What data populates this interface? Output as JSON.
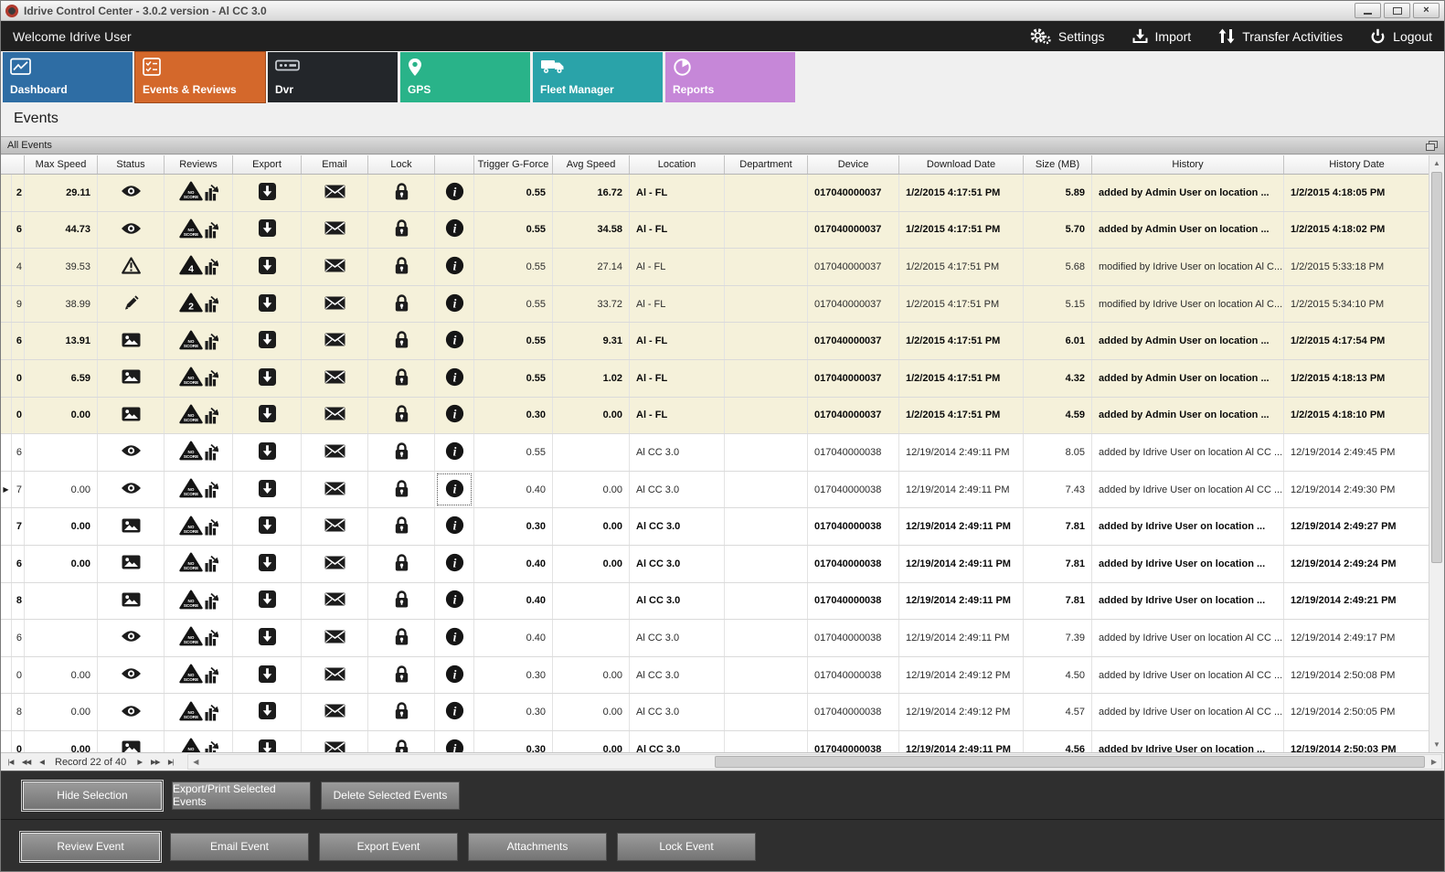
{
  "window": {
    "title": "Idrive Control Center - 3.0.2 version - Al CC 3.0"
  },
  "topbar": {
    "welcome": "Welcome Idrive User",
    "actions": [
      {
        "label": "Settings",
        "icon": "gear-icon"
      },
      {
        "label": "Import",
        "icon": "import-icon"
      },
      {
        "label": "Transfer Activities",
        "icon": "transfer-icon"
      },
      {
        "label": "Logout",
        "icon": "power-icon"
      }
    ]
  },
  "tabs": [
    {
      "label": "Dashboard",
      "color": "#2e6da4",
      "icon": "dashboard-icon",
      "active": false
    },
    {
      "label": "Events & Reviews",
      "color": "#d4682b",
      "icon": "events-icon",
      "active": true
    },
    {
      "label": "Dvr",
      "color": "#23262a",
      "icon": "dvr-icon",
      "active": false
    },
    {
      "label": "GPS",
      "color": "#29b389",
      "icon": "gps-icon",
      "active": false
    },
    {
      "label": "Fleet Manager",
      "color": "#2aa3a9",
      "icon": "fleet-icon",
      "active": false
    },
    {
      "label": "Reports",
      "color": "#c687d8",
      "icon": "reports-icon",
      "active": false
    }
  ],
  "page_title": "Events",
  "panel_title": "All Events",
  "grid": {
    "columns": [
      "Max Speed",
      "Status",
      "Reviews",
      "Export",
      "Email",
      "Lock",
      "",
      "Trigger G-Force",
      "Avg Speed",
      "Location",
      "Department",
      "Device",
      "Download Date",
      "Size (MB)",
      "History",
      "History Date"
    ],
    "rows": [
      {
        "edge": "2",
        "max_speed": "29.11",
        "status_icon": "eye",
        "review_badge": "NO SCORE",
        "trigger_g_force": "0.55",
        "avg_speed": "16.72",
        "location": "Al - FL",
        "department": "",
        "device": "017040000037",
        "download_date": "1/2/2015 4:17:51 PM",
        "size_mb": "5.89",
        "history": "added by Admin User on location ...",
        "history_date": "1/2/2015 4:18:05 PM",
        "bold": true,
        "shaded": true,
        "current": false,
        "focused": false
      },
      {
        "edge": "6",
        "max_speed": "44.73",
        "status_icon": "eye",
        "review_badge": "NO SCORE",
        "trigger_g_force": "0.55",
        "avg_speed": "34.58",
        "location": "Al - FL",
        "department": "",
        "device": "017040000037",
        "download_date": "1/2/2015 4:17:51 PM",
        "size_mb": "5.70",
        "history": "added by Admin User on location ...",
        "history_date": "1/2/2015 4:18:02 PM",
        "bold": true,
        "shaded": true,
        "current": false,
        "focused": false
      },
      {
        "edge": "4",
        "max_speed": "39.53",
        "status_icon": "warning",
        "review_badge": "4",
        "trigger_g_force": "0.55",
        "avg_speed": "27.14",
        "location": "Al - FL",
        "department": "",
        "device": "017040000037",
        "download_date": "1/2/2015 4:17:51 PM",
        "size_mb": "5.68",
        "history": "modified by Idrive User on location Al C...",
        "history_date": "1/2/2015 5:33:18 PM",
        "bold": false,
        "shaded": true,
        "current": false,
        "focused": false
      },
      {
        "edge": "9",
        "max_speed": "38.99",
        "status_icon": "pencil",
        "review_badge": "2",
        "trigger_g_force": "0.55",
        "avg_speed": "33.72",
        "location": "Al - FL",
        "department": "",
        "device": "017040000037",
        "download_date": "1/2/2015 4:17:51 PM",
        "size_mb": "5.15",
        "history": "modified by Idrive User on location Al C...",
        "history_date": "1/2/2015 5:34:10 PM",
        "bold": false,
        "shaded": true,
        "current": false,
        "focused": false
      },
      {
        "edge": "6",
        "max_speed": "13.91",
        "status_icon": "image",
        "review_badge": "NO SCORE",
        "trigger_g_force": "0.55",
        "avg_speed": "9.31",
        "location": "Al - FL",
        "department": "",
        "device": "017040000037",
        "download_date": "1/2/2015 4:17:51 PM",
        "size_mb": "6.01",
        "history": "added by Admin User on location ...",
        "history_date": "1/2/2015 4:17:54 PM",
        "bold": true,
        "shaded": true,
        "current": false,
        "focused": false
      },
      {
        "edge": "0",
        "max_speed": "6.59",
        "status_icon": "image",
        "review_badge": "NO SCORE",
        "trigger_g_force": "0.55",
        "avg_speed": "1.02",
        "location": "Al - FL",
        "department": "",
        "device": "017040000037",
        "download_date": "1/2/2015 4:17:51 PM",
        "size_mb": "4.32",
        "history": "added by Admin User on location ...",
        "history_date": "1/2/2015 4:18:13 PM",
        "bold": true,
        "shaded": true,
        "current": false,
        "focused": false
      },
      {
        "edge": "0",
        "max_speed": "0.00",
        "status_icon": "image",
        "review_badge": "NO SCORE",
        "trigger_g_force": "0.30",
        "avg_speed": "0.00",
        "location": "Al - FL",
        "department": "",
        "device": "017040000037",
        "download_date": "1/2/2015 4:17:51 PM",
        "size_mb": "4.59",
        "history": "added by Admin User on location ...",
        "history_date": "1/2/2015 4:18:10 PM",
        "bold": true,
        "shaded": true,
        "current": false,
        "focused": false
      },
      {
        "edge": "6",
        "max_speed": "",
        "status_icon": "eye",
        "review_badge": "NO SCORE",
        "trigger_g_force": "0.55",
        "avg_speed": "",
        "location": "Al CC 3.0",
        "department": "",
        "device": "017040000038",
        "download_date": "12/19/2014 2:49:11 PM",
        "size_mb": "8.05",
        "history": "added by Idrive User on location Al CC ...",
        "history_date": "12/19/2014 2:49:45 PM",
        "bold": false,
        "shaded": false,
        "current": false,
        "focused": false
      },
      {
        "edge": "7",
        "max_speed": "0.00",
        "status_icon": "eye",
        "review_badge": "NO SCORE",
        "trigger_g_force": "0.40",
        "avg_speed": "0.00",
        "location": "Al CC 3.0",
        "department": "",
        "device": "017040000038",
        "download_date": "12/19/2014 2:49:11 PM",
        "size_mb": "7.43",
        "history": "added by Idrive User on location Al CC ...",
        "history_date": "12/19/2014 2:49:30 PM",
        "bold": false,
        "shaded": false,
        "current": true,
        "focused": true
      },
      {
        "edge": "7",
        "max_speed": "0.00",
        "status_icon": "image",
        "review_badge": "NO SCORE",
        "trigger_g_force": "0.30",
        "avg_speed": "0.00",
        "location": "Al CC 3.0",
        "department": "",
        "device": "017040000038",
        "download_date": "12/19/2014 2:49:11 PM",
        "size_mb": "7.81",
        "history": "added by Idrive User on location ...",
        "history_date": "12/19/2014 2:49:27 PM",
        "bold": true,
        "shaded": false,
        "current": false,
        "focused": false
      },
      {
        "edge": "6",
        "max_speed": "0.00",
        "status_icon": "image",
        "review_badge": "NO SCORE",
        "trigger_g_force": "0.40",
        "avg_speed": "0.00",
        "location": "Al CC 3.0",
        "department": "",
        "device": "017040000038",
        "download_date": "12/19/2014 2:49:11 PM",
        "size_mb": "7.81",
        "history": "added by Idrive User on location ...",
        "history_date": "12/19/2014 2:49:24 PM",
        "bold": true,
        "shaded": false,
        "current": false,
        "focused": false
      },
      {
        "edge": "8",
        "max_speed": "",
        "status_icon": "image",
        "review_badge": "NO SCORE",
        "trigger_g_force": "0.40",
        "avg_speed": "",
        "location": "Al CC 3.0",
        "department": "",
        "device": "017040000038",
        "download_date": "12/19/2014 2:49:11 PM",
        "size_mb": "7.81",
        "history": "added by Idrive User on location ...",
        "history_date": "12/19/2014 2:49:21 PM",
        "bold": true,
        "shaded": false,
        "current": false,
        "focused": false
      },
      {
        "edge": "6",
        "max_speed": "",
        "status_icon": "eye",
        "review_badge": "NO SCORE",
        "trigger_g_force": "0.40",
        "avg_speed": "",
        "location": "Al CC 3.0",
        "department": "",
        "device": "017040000038",
        "download_date": "12/19/2014 2:49:11 PM",
        "size_mb": "7.39",
        "history": "added by Idrive User on location Al CC ...",
        "history_date": "12/19/2014 2:49:17 PM",
        "bold": false,
        "shaded": false,
        "current": false,
        "focused": false
      },
      {
        "edge": "0",
        "max_speed": "0.00",
        "status_icon": "eye",
        "review_badge": "NO SCORE",
        "trigger_g_force": "0.30",
        "avg_speed": "0.00",
        "location": "Al CC 3.0",
        "department": "",
        "device": "017040000038",
        "download_date": "12/19/2014 2:49:12 PM",
        "size_mb": "4.50",
        "history": "added by Idrive User on location Al CC ...",
        "history_date": "12/19/2014 2:50:08 PM",
        "bold": false,
        "shaded": false,
        "current": false,
        "focused": false
      },
      {
        "edge": "8",
        "max_speed": "0.00",
        "status_icon": "eye",
        "review_badge": "NO SCORE",
        "trigger_g_force": "0.30",
        "avg_speed": "0.00",
        "location": "Al CC 3.0",
        "department": "",
        "device": "017040000038",
        "download_date": "12/19/2014 2:49:12 PM",
        "size_mb": "4.57",
        "history": "added by Idrive User on location Al CC ...",
        "history_date": "12/19/2014 2:50:05 PM",
        "bold": false,
        "shaded": false,
        "current": false,
        "focused": false
      },
      {
        "edge": "0",
        "max_speed": "0.00",
        "status_icon": "image",
        "review_badge": "NO SCORE",
        "trigger_g_force": "0.30",
        "avg_speed": "0.00",
        "location": "Al CC 3.0",
        "department": "",
        "device": "017040000038",
        "download_date": "12/19/2014 2:49:11 PM",
        "size_mb": "4.56",
        "history": "added by Idrive User on location ...",
        "history_date": "12/19/2014 2:50:03 PM",
        "bold": true,
        "shaded": false,
        "current": false,
        "focused": false
      }
    ]
  },
  "navigator": {
    "record_label": "Record 22 of 40",
    "left_buttons": [
      "|◀",
      "◀◀",
      "◀"
    ],
    "right_buttons": [
      "▶",
      "▶▶",
      "▶|"
    ]
  },
  "action_bar_primary": [
    {
      "label": "Hide Selection",
      "highlight": true
    },
    {
      "label": "Export/Print Selected Events",
      "highlight": false
    },
    {
      "label": "Delete Selected  Events",
      "highlight": false
    }
  ],
  "action_bar_secondary": [
    {
      "label": "Review Event",
      "highlight": true
    },
    {
      "label": "Email Event",
      "highlight": false
    },
    {
      "label": "Export Event",
      "highlight": false
    },
    {
      "label": "Attachments",
      "highlight": false
    },
    {
      "label": "Lock Event",
      "highlight": false
    }
  ]
}
